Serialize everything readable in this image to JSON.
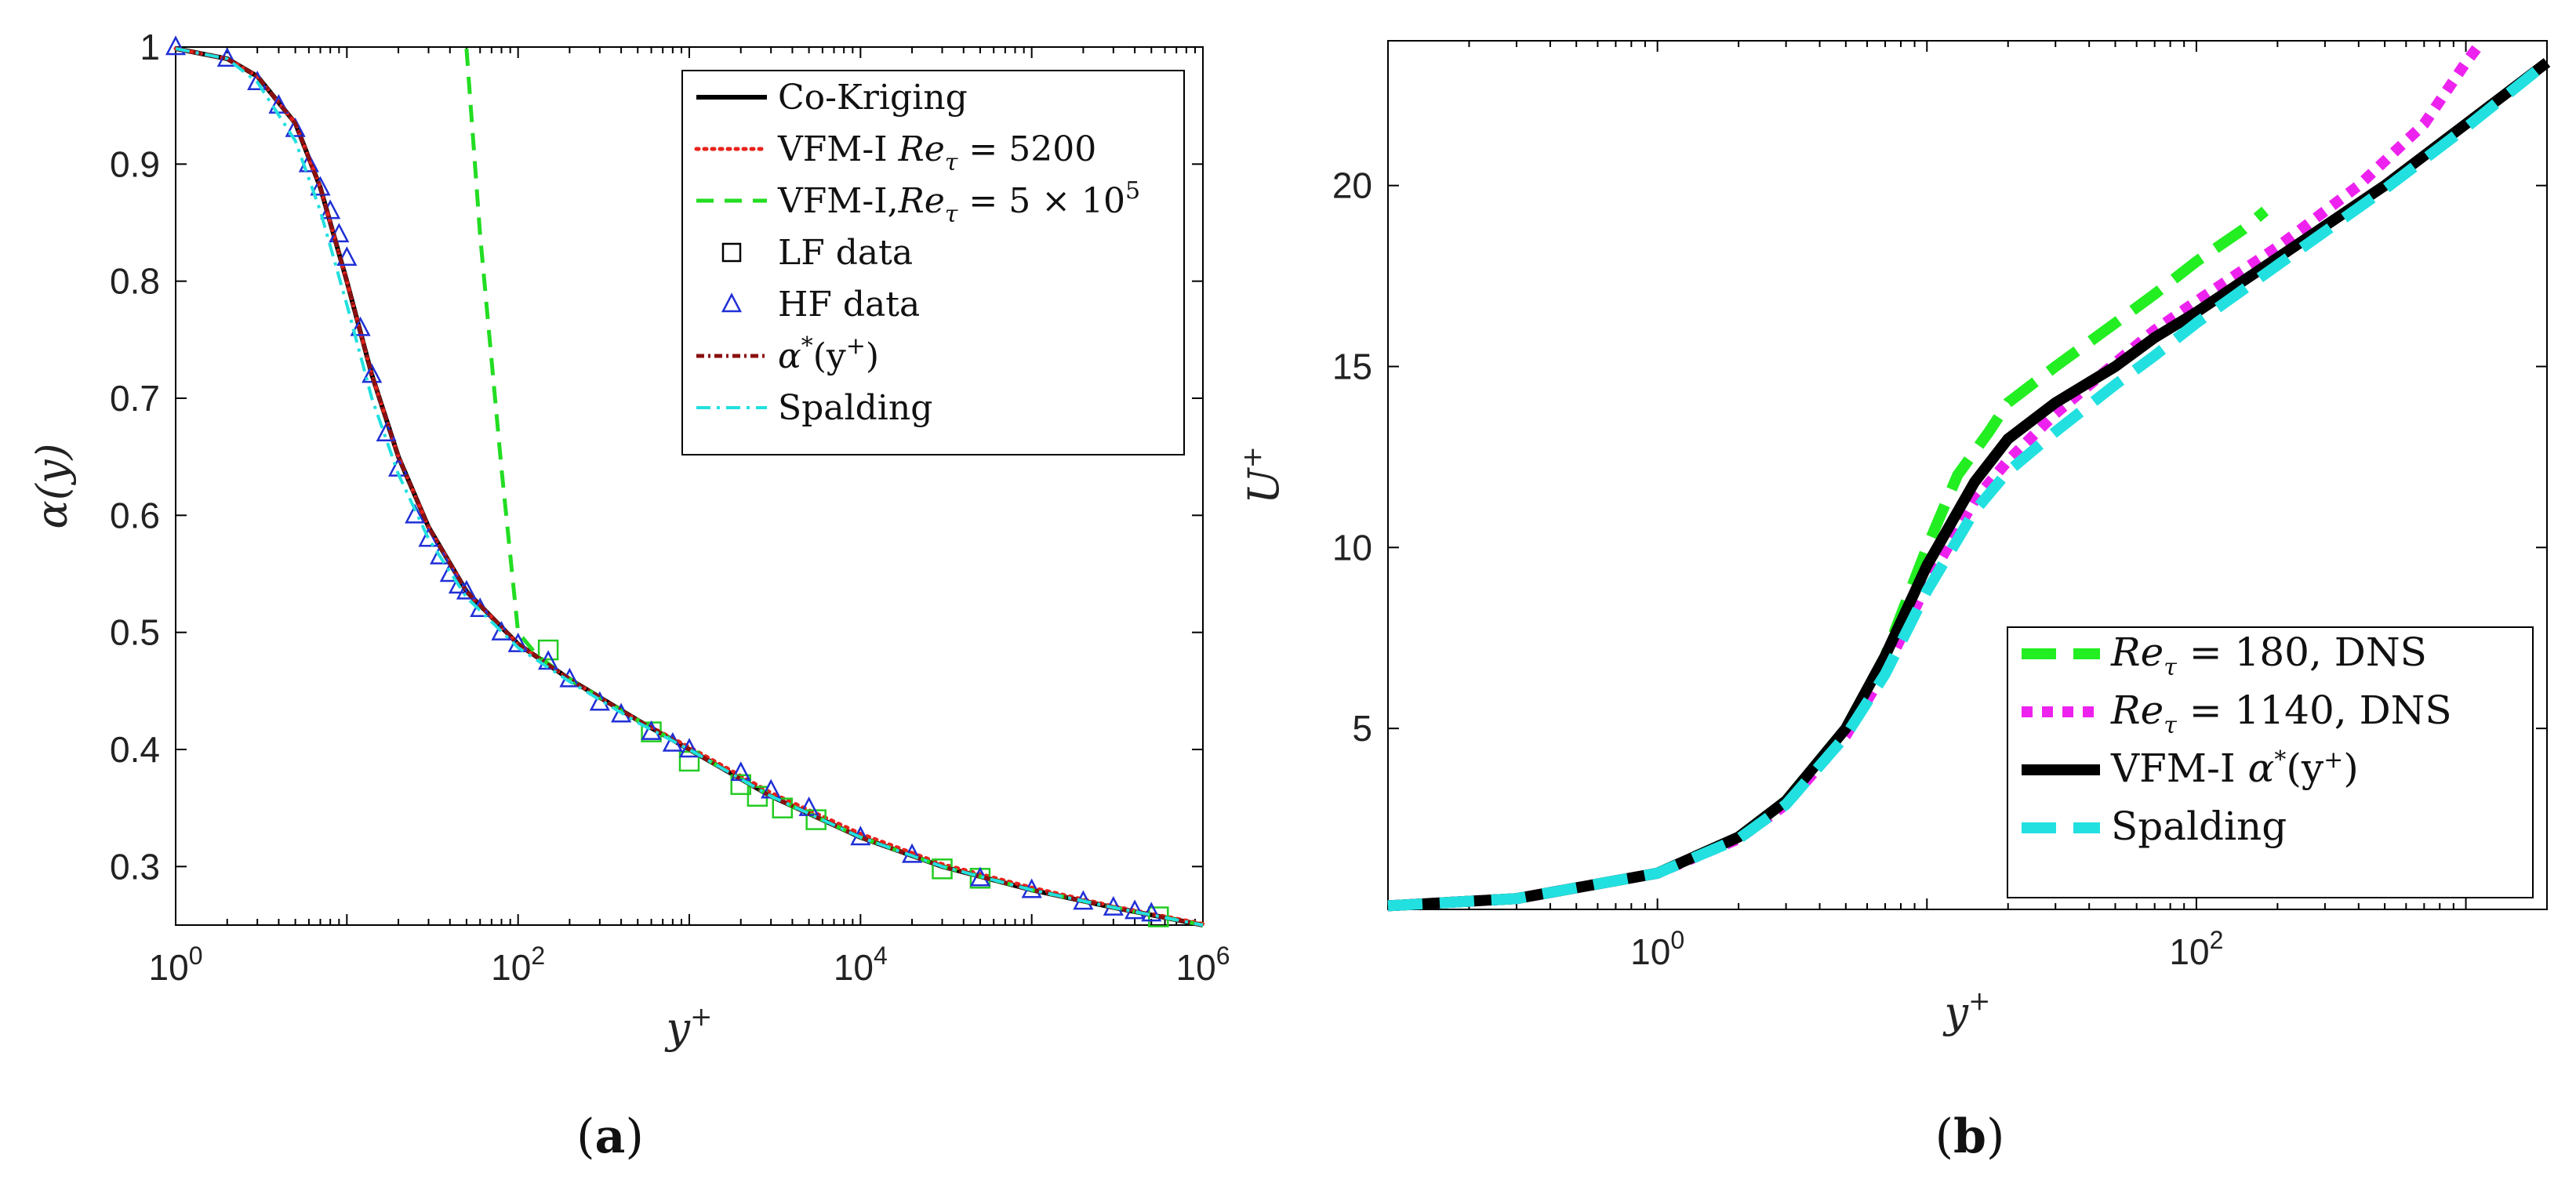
{
  "chart_data": [
    {
      "id": "a",
      "type": "line",
      "caption_open": "(",
      "caption_letter": "a",
      "caption_close": ")",
      "xscale": "log",
      "xlim": [
        1,
        1000000
      ],
      "ylim": [
        0.25,
        1.0
      ],
      "xlabel": "y+",
      "ylabel": "α(y)",
      "xticks": [
        {
          "base": "10",
          "exp": "0",
          "value": 1
        },
        {
          "base": "10",
          "exp": "2",
          "value": 100
        },
        {
          "base": "10",
          "exp": "4",
          "value": 10000
        },
        {
          "base": "10",
          "exp": "6",
          "value": 1000000
        }
      ],
      "yticks": [
        "0.3",
        "0.4",
        "0.5",
        "0.6",
        "0.7",
        "0.8",
        "0.9",
        "1"
      ],
      "legend_position": "top-right",
      "series": [
        {
          "name": "Co-Kriging",
          "style": "solid",
          "color": "#000000",
          "x": [
            1,
            2,
            3,
            5,
            7,
            10,
            14,
            20,
            30,
            50,
            100,
            200,
            500,
            1000,
            3000,
            10000,
            30000,
            100000,
            300000,
            1000000
          ],
          "y": [
            1.0,
            0.99,
            0.975,
            0.935,
            0.88,
            0.8,
            0.72,
            0.65,
            0.59,
            0.535,
            0.49,
            0.46,
            0.425,
            0.4,
            0.36,
            0.325,
            0.3,
            0.28,
            0.265,
            0.25
          ]
        },
        {
          "name": "VFM-I Reτ = 5200",
          "style": "dotted",
          "color": "#e8221b",
          "x": [
            1,
            2,
            3,
            5,
            7,
            10,
            14,
            20,
            30,
            50,
            100,
            200,
            500,
            1000,
            3000,
            10000,
            30000,
            100000,
            300000,
            1000000
          ],
          "y": [
            1.0,
            0.99,
            0.975,
            0.935,
            0.88,
            0.8,
            0.72,
            0.65,
            0.59,
            0.535,
            0.49,
            0.46,
            0.425,
            0.402,
            0.363,
            0.328,
            0.302,
            0.282,
            0.266,
            0.251
          ]
        },
        {
          "name": "VFM-I,Reτ = 5 × 10^5",
          "style": "dashed",
          "color": "#22dd22",
          "x": [
            50,
            60,
            80,
            100,
            130,
            200,
            500,
            1000,
            3000,
            10000,
            30000,
            100000,
            300000,
            1000000
          ],
          "y": [
            1.0,
            0.84,
            0.64,
            0.5,
            0.48,
            0.46,
            0.425,
            0.4,
            0.36,
            0.325,
            0.3,
            0.28,
            0.265,
            0.25
          ]
        },
        {
          "name": "LF data",
          "style": "marker-square",
          "color": "#22cc22",
          "x": [
            150,
            600,
            1000,
            2000,
            2500,
            3500,
            5500,
            30000,
            50000,
            550000
          ],
          "y": [
            0.485,
            0.415,
            0.39,
            0.37,
            0.36,
            0.35,
            0.34,
            0.298,
            0.29,
            0.257
          ]
        },
        {
          "name": "HF data",
          "style": "marker-triangle",
          "color": "#1f2fd6",
          "x": [
            1,
            2,
            3,
            4,
            5,
            6,
            7,
            8,
            9,
            10,
            12,
            14,
            17,
            20,
            25,
            30,
            35,
            40,
            45,
            50,
            60,
            80,
            100,
            150,
            200,
            300,
            400,
            600,
            800,
            1000,
            2000,
            3000,
            5000,
            10000,
            20000,
            50000,
            100000,
            200000,
            300000,
            400000,
            500000
          ],
          "y": [
            1.0,
            0.99,
            0.97,
            0.95,
            0.93,
            0.9,
            0.88,
            0.86,
            0.84,
            0.82,
            0.76,
            0.72,
            0.67,
            0.64,
            0.6,
            0.58,
            0.565,
            0.55,
            0.54,
            0.535,
            0.52,
            0.5,
            0.49,
            0.475,
            0.46,
            0.44,
            0.43,
            0.415,
            0.405,
            0.4,
            0.38,
            0.365,
            0.35,
            0.325,
            0.31,
            0.29,
            0.28,
            0.27,
            0.265,
            0.262,
            0.26
          ]
        },
        {
          "name": "α*(y+)",
          "style": "dashdot-dense",
          "color": "#8b1010",
          "x": [
            1,
            2,
            3,
            5,
            7,
            10,
            14,
            20,
            30,
            50,
            100,
            200,
            500,
            1000,
            3000,
            10000,
            30000,
            100000,
            300000,
            1000000
          ],
          "y": [
            1.0,
            0.99,
            0.975,
            0.935,
            0.88,
            0.8,
            0.72,
            0.65,
            0.59,
            0.535,
            0.49,
            0.46,
            0.425,
            0.4,
            0.36,
            0.325,
            0.3,
            0.28,
            0.265,
            0.25
          ]
        },
        {
          "name": "Spalding",
          "style": "dashdot",
          "color": "#22e0e0",
          "x": [
            1,
            2,
            3,
            5,
            7,
            10,
            14,
            20,
            30,
            50,
            100,
            200,
            500,
            1000,
            3000,
            10000,
            30000,
            100000,
            300000,
            1000000
          ],
          "y": [
            1.0,
            0.99,
            0.97,
            0.92,
            0.86,
            0.78,
            0.7,
            0.635,
            0.58,
            0.53,
            0.487,
            0.458,
            0.423,
            0.4,
            0.36,
            0.325,
            0.3,
            0.28,
            0.265,
            0.25
          ]
        }
      ],
      "legend": [
        {
          "label": "Co-Kriging",
          "series": 0
        },
        {
          "label": "VFM-I ",
          "italic": "Re",
          "sub": "τ",
          "rest": " = 5200",
          "series": 1
        },
        {
          "label": "VFM-I,",
          "italic": "Re",
          "sub": "τ",
          "rest": " = 5 × 10",
          "sup": "5",
          "series": 2
        },
        {
          "label": "LF data",
          "series": 3
        },
        {
          "label": "HF data",
          "series": 4
        },
        {
          "label": "",
          "italic": "α",
          "sup": "*",
          "rest": "(y",
          "sup2": "+",
          "tail": ")",
          "series": 5
        },
        {
          "label": "Spalding",
          "series": 6
        }
      ]
    },
    {
      "id": "b",
      "type": "line",
      "caption_open": "(",
      "caption_letter": "b",
      "caption_close": ")",
      "xscale": "log",
      "xlim": [
        0.1,
        2000
      ],
      "ylim": [
        0,
        24
      ],
      "xlabel": "y+",
      "ylabel": "U+",
      "xticks": [
        {
          "base": "10",
          "exp": "0",
          "value": 1
        },
        {
          "base": "10",
          "exp": "2",
          "value": 100
        }
      ],
      "yticks": [
        "5",
        "10",
        "15",
        "20"
      ],
      "legend_position": "bottom-right",
      "series": [
        {
          "name": "Reτ = 180, DNS",
          "style": "thick-dashed",
          "color": "#22ee22",
          "x": [
            0.1,
            0.3,
            1,
            2,
            3,
            5,
            7,
            10,
            13,
            17,
            20,
            30,
            50,
            70,
            100,
            150,
            180
          ],
          "y": [
            0.1,
            0.3,
            1.0,
            2.0,
            3.0,
            5.0,
            7.0,
            10.0,
            12.0,
            13.2,
            14.0,
            15.0,
            16.2,
            17.0,
            17.9,
            18.8,
            19.3
          ]
        },
        {
          "name": "Reτ = 1140, DNS",
          "style": "thick-dotted",
          "color": "#ee22ee",
          "x": [
            0.1,
            0.3,
            1,
            2,
            3,
            5,
            7,
            10,
            15,
            20,
            30,
            50,
            70,
            100,
            200,
            400,
            700,
            1000,
            1140
          ],
          "y": [
            0.1,
            0.3,
            1.0,
            1.95,
            2.9,
            4.8,
            6.6,
            9.0,
            11.3,
            12.4,
            13.7,
            15.1,
            16.0,
            16.8,
            18.3,
            20.0,
            21.7,
            23.4,
            24.0
          ]
        },
        {
          "name": "VFM-I α*(y+)",
          "style": "thick-solid",
          "color": "#000000",
          "x": [
            0.1,
            0.3,
            1,
            2,
            3,
            5,
            7,
            10,
            15,
            20,
            30,
            50,
            70,
            100,
            200,
            500,
            1000,
            2000
          ],
          "y": [
            0.1,
            0.3,
            1.0,
            2.0,
            3.0,
            5.0,
            7.0,
            9.5,
            11.8,
            13.0,
            14.0,
            15.0,
            15.8,
            16.5,
            18.0,
            20.0,
            21.7,
            23.4
          ]
        },
        {
          "name": "Spalding",
          "style": "thick-dashed",
          "color": "#22e0e0",
          "x": [
            0.1,
            0.3,
            1,
            2,
            3,
            5,
            7,
            10,
            15,
            20,
            30,
            50,
            70,
            100,
            200,
            500,
            1000,
            2000
          ],
          "y": [
            0.1,
            0.3,
            1.0,
            1.95,
            2.9,
            4.8,
            6.5,
            8.8,
            11.0,
            12.1,
            13.2,
            14.5,
            15.3,
            16.2,
            17.8,
            19.9,
            21.6,
            23.4
          ]
        }
      ],
      "legend": [
        {
          "label": "",
          "italic": "Re",
          "sub": "τ",
          "rest": " = 180, DNS",
          "series": 0
        },
        {
          "label": "",
          "italic": "Re",
          "sub": "τ",
          "rest": " = 1140, DNS",
          "series": 1
        },
        {
          "label": "VFM-I  ",
          "italic": "α",
          "sup": "*",
          "rest": "(y",
          "sup2": "+",
          "tail": ")",
          "series": 2
        },
        {
          "label": "Spalding",
          "series": 3
        }
      ]
    }
  ]
}
